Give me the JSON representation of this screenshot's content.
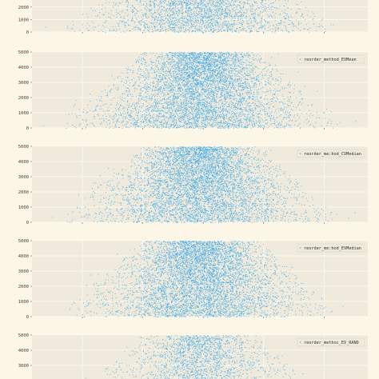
{
  "chart_data": [
    {
      "type": "scatter",
      "title": "",
      "legend": "",
      "legend_position": "none",
      "xlabel": "",
      "ylabel": "",
      "ylim": [
        0,
        5000
      ],
      "yticks": [
        0,
        1000,
        2000
      ],
      "visible_y_range": [
        0,
        2300
      ],
      "grid": true,
      "point_color": "#3fa9e8",
      "density_peak_fraction_of_width": 0.5,
      "approx_points": 4000
    },
    {
      "type": "scatter",
      "title": "",
      "legend": "reorder_method_EVMean",
      "legend_position": "top-right",
      "xlabel": "",
      "ylabel": "",
      "ylim": [
        0,
        5000
      ],
      "yticks": [
        0,
        1000,
        2000,
        3000,
        4000,
        5000
      ],
      "grid": true,
      "point_color": "#3fa9e8",
      "approx_points": 6000
    },
    {
      "type": "scatter",
      "title": "",
      "legend": "reorder_me:hod_CVMedian",
      "legend_position": "top-right",
      "xlabel": "",
      "ylabel": "",
      "ylim": [
        0,
        5000
      ],
      "yticks": [
        0,
        1000,
        2000,
        3000,
        4000,
        5000
      ],
      "grid": true,
      "point_color": "#3fa9e8",
      "approx_points": 6000
    },
    {
      "type": "scatter",
      "title": "",
      "legend": "reorder_me:hod_EVMedian",
      "legend_position": "top-right",
      "xlabel": "",
      "ylabel": "",
      "ylim": [
        0,
        5000
      ],
      "yticks": [
        0,
        1000,
        2000,
        3000,
        4000,
        5000
      ],
      "grid": true,
      "point_color": "#3fa9e8",
      "approx_points": 6000
    },
    {
      "type": "scatter",
      "title": "",
      "legend": "reorder_methoc_EV_RAND",
      "legend_position": "top-right",
      "xlabel": "",
      "ylabel": "",
      "ylim": [
        0,
        5000
      ],
      "yticks": [
        3000,
        4000,
        5000
      ],
      "visible_y_range": [
        2500,
        5000
      ],
      "grid": true,
      "point_color": "#3fa9e8",
      "approx_points": 3000
    }
  ],
  "colors": {
    "page_background": "#fcf6e6",
    "plot_background": "#efeadb",
    "grid": "#ffffff",
    "points": "#3fa9e8"
  }
}
